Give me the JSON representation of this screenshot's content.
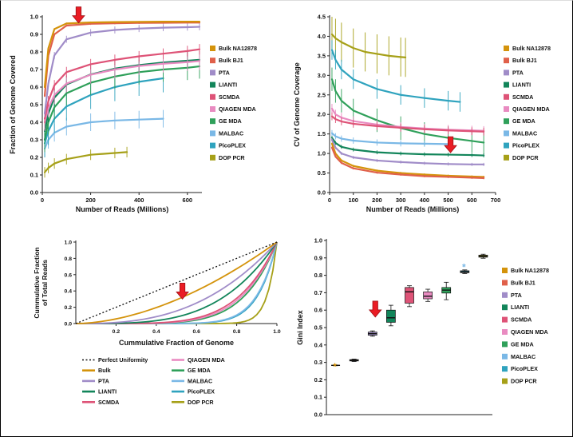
{
  "labels": {
    "bulk_na": "Bulk NA12878",
    "bulk_bj1": "Bulk BJ1",
    "pta": "PTA",
    "lianti": "LIANTI",
    "scmda": "SCMDA",
    "qiagen": "QIAGEN MDA",
    "ge_mda": "GE MDA",
    "malbac": "MALBAC",
    "picoplex": "PicoPLEX",
    "dop": "DOP PCR",
    "perfect": "Perfect Uniformity",
    "bulk": "Bulk"
  },
  "colors": {
    "bulk_na": "#D4930B",
    "bulk_bj1": "#E0604A",
    "pta": "#A08CC8",
    "lianti": "#12855A",
    "scmda": "#DE5377",
    "qiagen": "#E98BC1",
    "ge_mda": "#2FA05A",
    "malbac": "#7AB8E6",
    "picoplex": "#2FA3BE",
    "dop": "#A6A018",
    "perfect": "#111111",
    "bulk": "#D4930B",
    "arrow": "#EA1C24",
    "arrow_outline": "#9E1016"
  },
  "chart_data": [
    {
      "type": "line",
      "xlabel": "Number of Reads (Millions)",
      "ylabel": "Fraction of Genome Covered",
      "xlim": [
        0,
        660
      ],
      "ylim": [
        0,
        1.0
      ],
      "xticks": [
        0,
        200,
        400,
        600
      ],
      "yticks": [
        0,
        0.1,
        0.2,
        0.3,
        0.4,
        0.5,
        0.6,
        0.7,
        0.8,
        0.9,
        1.0
      ],
      "legend": [
        "bulk_na",
        "bulk_bj1",
        "pta",
        "lianti",
        "scmda",
        "qiagen",
        "ge_mda",
        "malbac",
        "picoplex",
        "dop"
      ],
      "arrow": {
        "x": 150,
        "y": 0.965
      },
      "series": [
        {
          "c": "dop",
          "x": [
            10,
            25,
            50,
            100,
            200,
            300,
            350
          ],
          "y": [
            0.115,
            0.14,
            0.165,
            0.19,
            0.215,
            0.225,
            0.23
          ],
          "err": 0.03
        },
        {
          "c": "malbac",
          "x": [
            10,
            25,
            50,
            100,
            200,
            300,
            400,
            500
          ],
          "y": [
            0.25,
            0.3,
            0.34,
            0.375,
            0.4,
            0.41,
            0.415,
            0.42
          ],
          "err": 0.05
        },
        {
          "c": "picoplex",
          "x": [
            10,
            25,
            50,
            100,
            200,
            300,
            400,
            500
          ],
          "y": [
            0.28,
            0.35,
            0.42,
            0.49,
            0.555,
            0.6,
            0.63,
            0.65
          ],
          "err": 0.08
        },
        {
          "c": "ge_mda",
          "x": [
            10,
            25,
            50,
            100,
            200,
            300,
            400,
            500,
            600,
            650
          ],
          "y": [
            0.3,
            0.4,
            0.485,
            0.565,
            0.625,
            0.66,
            0.685,
            0.7,
            0.71,
            0.718
          ],
          "err": 0.07
        },
        {
          "c": "lianti",
          "x": [
            10,
            25,
            50,
            100,
            200,
            300,
            400,
            500,
            600,
            650
          ],
          "y": [
            0.35,
            0.45,
            0.54,
            0.615,
            0.672,
            0.705,
            0.725,
            0.74,
            0.75,
            0.755
          ],
          "err": 0.05
        },
        {
          "c": "qiagen",
          "x": [
            10,
            25,
            50,
            100,
            200,
            300,
            400,
            500,
            600,
            650
          ],
          "y": [
            0.4,
            0.48,
            0.555,
            0.62,
            0.67,
            0.7,
            0.72,
            0.733,
            0.742,
            0.748
          ],
          "err": 0.05
        },
        {
          "c": "scmda",
          "x": [
            10,
            25,
            50,
            100,
            200,
            300,
            400,
            500,
            600,
            650
          ],
          "y": [
            0.42,
            0.52,
            0.61,
            0.685,
            0.73,
            0.755,
            0.775,
            0.79,
            0.805,
            0.815
          ],
          "err": 0.03
        },
        {
          "c": "pta",
          "x": [
            10,
            25,
            50,
            100,
            200,
            300,
            400,
            500,
            600,
            650
          ],
          "y": [
            0.45,
            0.62,
            0.78,
            0.872,
            0.91,
            0.925,
            0.933,
            0.938,
            0.941,
            0.943
          ],
          "err": 0.02
        },
        {
          "c": "bulk_bj1",
          "x": [
            10,
            25,
            50,
            100,
            200,
            300,
            400,
            500,
            600,
            650
          ],
          "y": [
            0.55,
            0.78,
            0.9,
            0.95,
            0.96,
            0.963,
            0.965,
            0.966,
            0.967,
            0.967
          ],
          "err": 0.006
        },
        {
          "c": "bulk_na",
          "x": [
            10,
            25,
            50,
            100,
            200,
            300,
            400,
            500,
            600,
            650
          ],
          "y": [
            0.6,
            0.82,
            0.93,
            0.962,
            0.968,
            0.97,
            0.971,
            0.972,
            0.972,
            0.972
          ],
          "err": 0.005
        }
      ]
    },
    {
      "type": "line",
      "xlabel": "Number of Reads (Millions)",
      "ylabel": "CV of Genome Coverage",
      "xlim": [
        0,
        700
      ],
      "ylim": [
        0,
        4.5
      ],
      "xticks": [
        0,
        100,
        200,
        300,
        400,
        500,
        600,
        700
      ],
      "yticks": [
        0,
        0.5,
        1.0,
        1.5,
        2.0,
        2.5,
        3.0,
        3.5,
        4.0,
        4.5
      ],
      "legend": [
        "bulk_na",
        "bulk_bj1",
        "pta",
        "lianti",
        "scmda",
        "qiagen",
        "ge_mda",
        "malbac",
        "picoplex",
        "dop"
      ],
      "arrow": {
        "x": 510,
        "y": 1.02
      },
      "series": [
        {
          "c": "dop",
          "x": [
            10,
            25,
            50,
            100,
            150,
            200,
            250,
            300,
            320
          ],
          "y": [
            4.05,
            3.95,
            3.85,
            3.7,
            3.6,
            3.55,
            3.5,
            3.47,
            3.46
          ],
          "err": 0.5
        },
        {
          "c": "picoplex",
          "x": [
            10,
            25,
            50,
            100,
            200,
            300,
            400,
            500,
            550
          ],
          "y": [
            3.65,
            3.4,
            3.15,
            2.9,
            2.65,
            2.5,
            2.42,
            2.35,
            2.32
          ],
          "err": 0.25
        },
        {
          "c": "ge_mda",
          "x": [
            10,
            25,
            50,
            100,
            200,
            300,
            400,
            500,
            600,
            650
          ],
          "y": [
            2.9,
            2.6,
            2.35,
            2.1,
            1.85,
            1.65,
            1.5,
            1.4,
            1.32,
            1.28
          ],
          "err": 0.3
        },
        {
          "c": "qiagen",
          "x": [
            10,
            25,
            50,
            100,
            200,
            300,
            400,
            500,
            600,
            650
          ],
          "y": [
            2.15,
            2.0,
            1.92,
            1.83,
            1.74,
            1.68,
            1.64,
            1.61,
            1.59,
            1.58
          ],
          "err": 0.12
        },
        {
          "c": "scmda",
          "x": [
            10,
            25,
            50,
            100,
            200,
            300,
            400,
            500,
            600,
            650
          ],
          "y": [
            1.95,
            1.88,
            1.82,
            1.76,
            1.7,
            1.66,
            1.62,
            1.59,
            1.57,
            1.56
          ],
          "err": 0.1
        },
        {
          "c": "malbac",
          "x": [
            10,
            25,
            50,
            100,
            200,
            300,
            400,
            500
          ],
          "y": [
            1.52,
            1.44,
            1.38,
            1.33,
            1.28,
            1.26,
            1.25,
            1.24
          ],
          "err": 0.08
        },
        {
          "c": "lianti",
          "x": [
            10,
            25,
            50,
            100,
            200,
            300,
            400,
            500,
            600,
            650
          ],
          "y": [
            1.4,
            1.27,
            1.17,
            1.1,
            1.03,
            1.0,
            0.98,
            0.97,
            0.96,
            0.95
          ],
          "err": 0.05
        },
        {
          "c": "pta",
          "x": [
            10,
            25,
            50,
            100,
            200,
            300,
            400,
            500,
            600,
            650
          ],
          "y": [
            1.35,
            1.15,
            1.0,
            0.9,
            0.82,
            0.78,
            0.75,
            0.73,
            0.72,
            0.72
          ],
          "err": 0.04
        },
        {
          "c": "bulk_na",
          "x": [
            10,
            25,
            50,
            100,
            200,
            300,
            400,
            500,
            600,
            650
          ],
          "y": [
            1.25,
            1.0,
            0.82,
            0.68,
            0.56,
            0.5,
            0.46,
            0.43,
            0.41,
            0.4
          ],
          "err": 0.03
        },
        {
          "c": "bulk_bj1",
          "x": [
            10,
            25,
            50,
            100,
            200,
            300,
            400,
            500,
            600,
            650
          ],
          "y": [
            1.15,
            0.92,
            0.76,
            0.62,
            0.51,
            0.46,
            0.42,
            0.4,
            0.38,
            0.37
          ],
          "err": 0.03
        }
      ]
    },
    {
      "type": "lorenz",
      "xlabel": "Cummulative Fraction of Genome",
      "ylabel_lines": [
        "Cummulative Fraction",
        "of Total Reads"
      ],
      "xlim": [
        0,
        1.0
      ],
      "ylim": [
        0,
        1.0
      ],
      "xticks": [
        0.2,
        0.4,
        0.6,
        0.8,
        1.0
      ],
      "yticks": [
        0,
        0.2,
        0.4,
        0.6,
        0.8,
        1.0
      ],
      "arrow": {
        "x": 0.53,
        "y": 0.3
      },
      "legend_col1": [
        "perfect",
        "bulk",
        "pta",
        "lianti",
        "scmda"
      ],
      "legend_col2": [
        "qiagen",
        "ge_mda",
        "malbac",
        "picoplex",
        "dop"
      ],
      "series": [
        {
          "c": "dop",
          "exponent": 21,
          "dotted": false
        },
        {
          "c": "picoplex",
          "exponent": 10.6,
          "dotted": false
        },
        {
          "c": "malbac",
          "exponent": 10.1,
          "dotted": false
        },
        {
          "c": "ge_mda",
          "exponent": 6.14,
          "dotted": false
        },
        {
          "c": "qiagen",
          "exponent": 5.67,
          "dotted": false
        },
        {
          "c": "scmda",
          "exponent": 5.25,
          "dotted": false
        },
        {
          "c": "lianti",
          "exponent": 3.65,
          "dotted": false
        },
        {
          "c": "pta",
          "exponent": 2.7,
          "dotted": false
        },
        {
          "c": "bulk",
          "exponent": 1.78,
          "dotted": false
        },
        {
          "c": "perfect",
          "exponent": 1,
          "dotted": true
        }
      ]
    },
    {
      "type": "box",
      "ylabel": "Gini Index",
      "ylim": [
        0,
        1.0
      ],
      "yticks": [
        0,
        0.1,
        0.2,
        0.3,
        0.4,
        0.5,
        0.6,
        0.7,
        0.8,
        0.9,
        1.0
      ],
      "legend": [
        "bulk_na",
        "bulk_bj1",
        "pta",
        "lianti",
        "scmda",
        "qiagen",
        "ge_mda",
        "malbac",
        "picoplex",
        "dop"
      ],
      "arrow": {
        "i": 2.15,
        "y": 0.56
      },
      "boxes": [
        {
          "c": "bulk_na",
          "lo": 0.281,
          "q1": 0.282,
          "med": 0.283,
          "q3": 0.284,
          "hi": 0.285,
          "star": 0.272,
          "star_c": "bulk_na"
        },
        {
          "c": "bulk_bj1",
          "lo": 0.305,
          "q1": 0.308,
          "med": 0.312,
          "q3": 0.316,
          "hi": 0.319
        },
        {
          "c": "pta",
          "lo": 0.45,
          "q1": 0.456,
          "med": 0.465,
          "q3": 0.474,
          "hi": 0.481
        },
        {
          "c": "lianti",
          "lo": 0.51,
          "q1": 0.53,
          "med": 0.556,
          "q3": 0.6,
          "hi": 0.628
        },
        {
          "c": "scmda",
          "lo": 0.62,
          "q1": 0.64,
          "med": 0.705,
          "q3": 0.73,
          "hi": 0.74
        },
        {
          "c": "qiagen",
          "lo": 0.65,
          "q1": 0.665,
          "med": 0.68,
          "q3": 0.705,
          "hi": 0.72
        },
        {
          "c": "ge_mda",
          "lo": 0.66,
          "q1": 0.698,
          "med": 0.715,
          "q3": 0.73,
          "hi": 0.76
        },
        {
          "c": "picoplex",
          "lo": 0.81,
          "q1": 0.815,
          "med": 0.82,
          "q3": 0.826,
          "hi": 0.831,
          "star": 0.845,
          "star_c": "malbac"
        },
        {
          "c": "dop",
          "lo": 0.898,
          "q1": 0.904,
          "med": 0.91,
          "q3": 0.916,
          "hi": 0.921
        }
      ]
    }
  ]
}
